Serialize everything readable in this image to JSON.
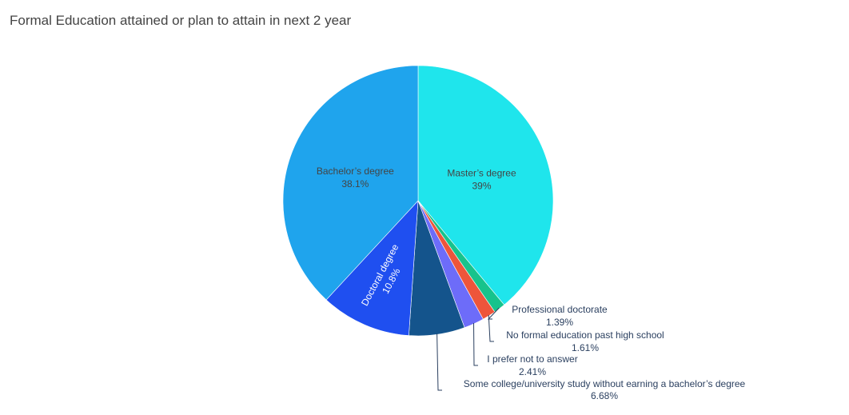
{
  "chart_data": {
    "type": "pie",
    "title": "Formal Education attained or plan to attain in next 2 year",
    "slices": [
      {
        "label": "Master’s degree",
        "value": 39.0,
        "pct_label": "39%",
        "color": "#1fe5ec",
        "label_mode": "inside",
        "text_color": "#444444"
      },
      {
        "label": "Professional doctorate",
        "value": 1.39,
        "pct_label": "1.39%",
        "color": "#17c38c",
        "label_mode": "outside"
      },
      {
        "label": "No formal education past high school",
        "value": 1.61,
        "pct_label": "1.61%",
        "color": "#ee553b",
        "label_mode": "outside"
      },
      {
        "label": "I prefer not to answer",
        "value": 2.41,
        "pct_label": "2.41%",
        "color": "#6d6cf9",
        "label_mode": "outside"
      },
      {
        "label": "Some college/university study without earning a bachelor’s degree",
        "value": 6.68,
        "pct_label": "6.68%",
        "color": "#14548c",
        "label_mode": "outside"
      },
      {
        "label": "Doctoral degree",
        "value": 10.8,
        "pct_label": "10.8%",
        "color": "#1f4ff0",
        "label_mode": "inside-rotated",
        "text_color": "#ffffff"
      },
      {
        "label": "Bachelor’s degree",
        "value": 38.1,
        "pct_label": "38.1%",
        "color": "#1fa4ed",
        "label_mode": "inside",
        "text_color": "#444444"
      }
    ],
    "direction": "clockwise",
    "start_angle": "12 o'clock",
    "legend": "none"
  }
}
